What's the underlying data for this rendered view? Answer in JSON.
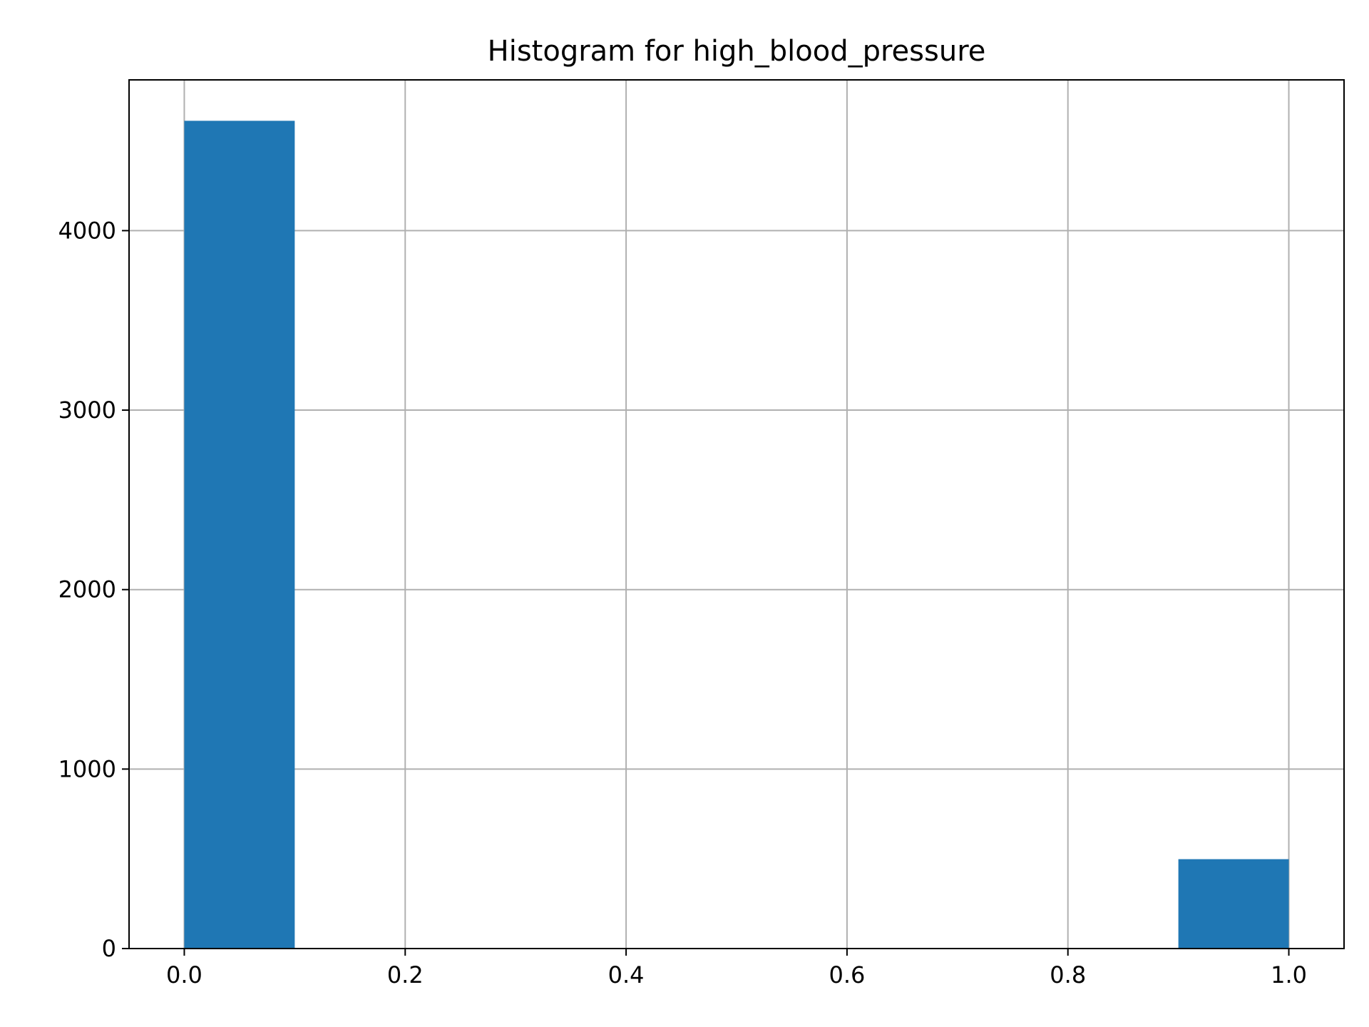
{
  "chart_data": {
    "type": "bar",
    "title": "Histogram for high_blood_pressure",
    "xlabel": "",
    "ylabel": "",
    "xlim": [
      -0.05,
      1.05
    ],
    "ylim": [
      0,
      4840
    ],
    "grid": true,
    "bar_color": "#1f77b4",
    "bins": [
      {
        "x0": 0.0,
        "x1": 0.1,
        "count": 4612
      },
      {
        "x0": 0.1,
        "x1": 0.2,
        "count": 0
      },
      {
        "x0": 0.2,
        "x1": 0.3,
        "count": 0
      },
      {
        "x0": 0.3,
        "x1": 0.4,
        "count": 0
      },
      {
        "x0": 0.4,
        "x1": 0.5,
        "count": 0
      },
      {
        "x0": 0.5,
        "x1": 0.6,
        "count": 0
      },
      {
        "x0": 0.6,
        "x1": 0.7,
        "count": 0
      },
      {
        "x0": 0.7,
        "x1": 0.8,
        "count": 0
      },
      {
        "x0": 0.8,
        "x1": 0.9,
        "count": 0
      },
      {
        "x0": 0.9,
        "x1": 1.0,
        "count": 498
      }
    ],
    "x_ticks": [
      {
        "value": 0.0,
        "label": "0.0"
      },
      {
        "value": 0.2,
        "label": "0.2"
      },
      {
        "value": 0.4,
        "label": "0.4"
      },
      {
        "value": 0.6,
        "label": "0.6"
      },
      {
        "value": 0.8,
        "label": "0.8"
      },
      {
        "value": 1.0,
        "label": "1.0"
      }
    ],
    "y_ticks": [
      {
        "value": 0,
        "label": "0"
      },
      {
        "value": 1000,
        "label": "1000"
      },
      {
        "value": 2000,
        "label": "2000"
      },
      {
        "value": 3000,
        "label": "3000"
      },
      {
        "value": 4000,
        "label": "4000"
      }
    ]
  }
}
